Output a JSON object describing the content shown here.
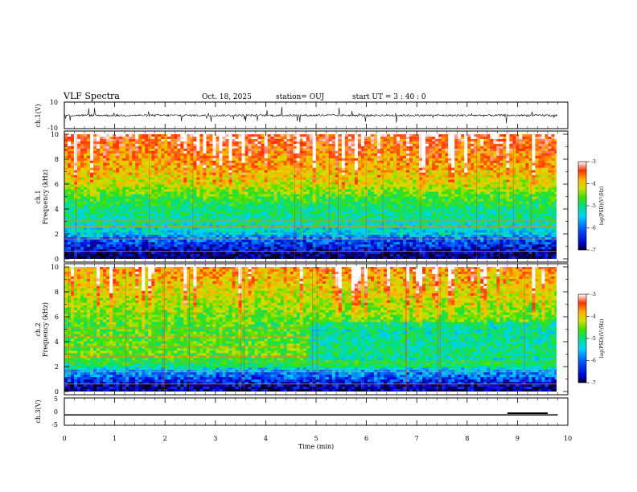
{
  "header": {
    "title": "VLF Spectra",
    "date": "Oct. 18, 2025",
    "station": "station= OUJ",
    "start": "start UT =   3 : 40 : 0"
  },
  "colors": {
    "frame": "#000000",
    "background": "#ffffff",
    "colormap": [
      "#000020",
      "#0000d0",
      "#0060ff",
      "#00d0ff",
      "#00e080",
      "#40e000",
      "#d0e000",
      "#ffb000",
      "#ff3000",
      "#ffffff"
    ]
  },
  "chart_data": [
    {
      "type": "heatmap",
      "title": "VLF Spectra",
      "channel": "ch.1",
      "xlabel": "Time  (min)",
      "ylabel": "Frequency  (kHz)",
      "xlim": [
        0,
        10
      ],
      "ylim": [
        0,
        10
      ],
      "x_ticks": [
        0,
        1,
        2,
        3,
        4,
        5,
        6,
        7,
        8,
        9,
        10
      ],
      "x_tick_labels": [
        "0",
        "1",
        "2",
        "3",
        "4",
        "5",
        "6",
        "7",
        "8",
        "9",
        "10"
      ],
      "y_ticks": [
        0,
        2,
        4,
        6,
        8,
        10
      ],
      "y_tick_labels": [
        "0",
        "2",
        "4",
        "6",
        "8",
        "10"
      ],
      "data_end_min": 9.8,
      "colorbar_label": "log(PSD)(V²/Hz)",
      "colorbar_range": [
        -7,
        -3
      ],
      "colorbar_ticks": [
        -7,
        -6,
        -5,
        -4,
        -3
      ],
      "colorbar_tick_labels": [
        "-7",
        "-6",
        "-5",
        "-4",
        "-3"
      ],
      "band_profile_khz": [
        {
          "f": 0.0,
          "level": -6.9
        },
        {
          "f": 0.5,
          "level": -6.7
        },
        {
          "f": 1.0,
          "level": -6.4
        },
        {
          "f": 1.6,
          "level": -6.1
        },
        {
          "f": 2.0,
          "level": -5.6
        },
        {
          "f": 3.0,
          "level": -5.3
        },
        {
          "f": 4.0,
          "level": -5.2
        },
        {
          "f": 5.0,
          "level": -4.9
        },
        {
          "f": 6.0,
          "level": -4.4
        },
        {
          "f": 8.0,
          "level": -4.0
        },
        {
          "f": 10.0,
          "level": -3.6
        }
      ],
      "narrowband_lines_khz": [
        0.6,
        1.6,
        2.6,
        3.1
      ]
    },
    {
      "type": "line",
      "channel": "ch.1",
      "ylabel": "ch.1(V)",
      "ylim": [
        -10,
        10
      ],
      "y_tick_labels": [
        "-10",
        "10"
      ],
      "baseline": 0,
      "noise_amplitude": 1.5,
      "spike_amplitude": 6
    },
    {
      "type": "heatmap",
      "channel": "ch.2",
      "xlabel": "Time  (min)",
      "ylabel": "Frequency  (kHz)",
      "xlim": [
        0,
        10
      ],
      "ylim": [
        0,
        10
      ],
      "x_ticks": [
        0,
        1,
        2,
        3,
        4,
        5,
        6,
        7,
        8,
        9,
        10
      ],
      "y_ticks": [
        0,
        2,
        4,
        6,
        8,
        10
      ],
      "y_tick_labels": [
        "0",
        "2",
        "4",
        "6",
        "8",
        "10"
      ],
      "data_end_min": 9.8,
      "colorbar_label": "log(PSD)(V²/Hz)",
      "colorbar_range": [
        -7,
        -3
      ],
      "colorbar_ticks": [
        -7,
        -6,
        -5,
        -4,
        -3
      ],
      "colorbar_tick_labels": [
        "-7",
        "-6",
        "-5",
        "-4",
        "-3"
      ],
      "band_profile_khz": [
        {
          "f": 0.0,
          "level": -6.8
        },
        {
          "f": 0.5,
          "level": -6.6
        },
        {
          "f": 1.0,
          "level": -6.2
        },
        {
          "f": 1.6,
          "level": -5.9
        },
        {
          "f": 2.0,
          "level": -5.2
        },
        {
          "f": 3.0,
          "level": -4.7
        },
        {
          "f": 4.0,
          "level": -4.8
        },
        {
          "f": 5.0,
          "level": -4.9
        },
        {
          "f": 6.0,
          "level": -4.8
        },
        {
          "f": 8.0,
          "level": -4.4
        },
        {
          "f": 10.0,
          "level": -4.0
        }
      ],
      "narrowband_lines_khz": [
        0.6,
        1.6,
        2.4,
        2.8,
        3.6,
        4.4,
        5.1,
        6.3
      ],
      "interference_end_min": 4.85
    },
    {
      "type": "line",
      "channel": "ch.3",
      "ylabel": "ch.3(V)",
      "ylim": [
        -5,
        5
      ],
      "y_tick_labels": [
        "-5",
        "0",
        "5"
      ],
      "baseline": -1.2,
      "offset_segment": {
        "x_start": 8.8,
        "x_end": 9.6,
        "value": -0.6
      }
    }
  ]
}
